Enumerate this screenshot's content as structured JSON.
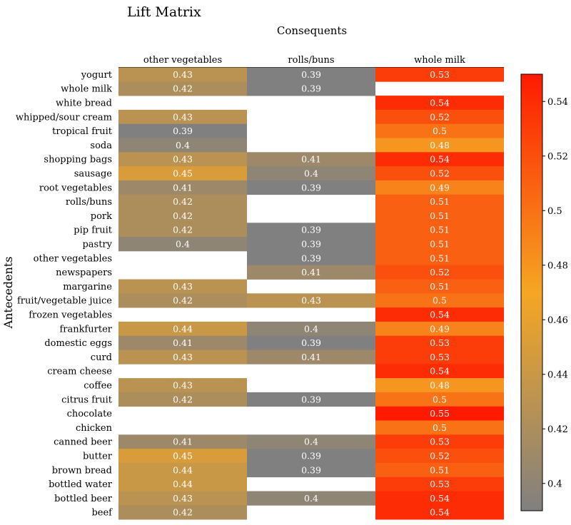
{
  "chart_data": {
    "type": "heatmap",
    "title": "Lift Matrix",
    "xlabel": "Consequents",
    "ylabel": "Antecedents",
    "columns": [
      "other vegetables",
      "rolls/buns",
      "whole milk"
    ],
    "rows": [
      {
        "label": "yogurt",
        "values": [
          0.43,
          0.39,
          0.53
        ]
      },
      {
        "label": "whole milk",
        "values": [
          0.42,
          0.39,
          null
        ]
      },
      {
        "label": "white bread",
        "values": [
          null,
          null,
          0.54
        ]
      },
      {
        "label": "whipped/sour cream",
        "values": [
          0.43,
          null,
          0.52
        ]
      },
      {
        "label": "tropical fruit",
        "values": [
          0.39,
          null,
          0.5
        ]
      },
      {
        "label": "soda",
        "values": [
          0.4,
          null,
          0.48
        ]
      },
      {
        "label": "shopping bags",
        "values": [
          0.43,
          0.41,
          0.54
        ]
      },
      {
        "label": "sausage",
        "values": [
          0.45,
          0.4,
          0.52
        ]
      },
      {
        "label": "root vegetables",
        "values": [
          0.41,
          0.39,
          0.49
        ]
      },
      {
        "label": "rolls/buns",
        "values": [
          0.42,
          null,
          0.51
        ]
      },
      {
        "label": "pork",
        "values": [
          0.42,
          null,
          0.51
        ]
      },
      {
        "label": "pip fruit",
        "values": [
          0.42,
          0.39,
          0.51
        ]
      },
      {
        "label": "pastry",
        "values": [
          0.4,
          0.39,
          0.51
        ]
      },
      {
        "label": "other vegetables",
        "values": [
          null,
          0.39,
          0.51
        ]
      },
      {
        "label": "newspapers",
        "values": [
          null,
          0.41,
          0.52
        ]
      },
      {
        "label": "margarine",
        "values": [
          0.43,
          null,
          0.51
        ]
      },
      {
        "label": "fruit/vegetable juice",
        "values": [
          0.42,
          0.43,
          0.5
        ]
      },
      {
        "label": "frozen vegetables",
        "values": [
          null,
          null,
          0.54
        ]
      },
      {
        "label": "frankfurter",
        "values": [
          0.44,
          0.4,
          0.49
        ]
      },
      {
        "label": "domestic eggs",
        "values": [
          0.41,
          0.39,
          0.53
        ]
      },
      {
        "label": "curd",
        "values": [
          0.43,
          0.41,
          0.53
        ]
      },
      {
        "label": "cream cheese",
        "values": [
          null,
          null,
          0.54
        ]
      },
      {
        "label": "coffee",
        "values": [
          0.43,
          null,
          0.48
        ]
      },
      {
        "label": "citrus fruit",
        "values": [
          0.42,
          0.39,
          0.5
        ]
      },
      {
        "label": "chocolate",
        "values": [
          null,
          null,
          0.55
        ]
      },
      {
        "label": "chicken",
        "values": [
          null,
          null,
          0.5
        ]
      },
      {
        "label": "canned beer",
        "values": [
          0.41,
          0.4,
          0.53
        ]
      },
      {
        "label": "butter",
        "values": [
          0.45,
          0.39,
          0.52
        ]
      },
      {
        "label": "brown bread",
        "values": [
          0.44,
          0.39,
          0.51
        ]
      },
      {
        "label": "bottled water",
        "values": [
          0.44,
          null,
          0.53
        ]
      },
      {
        "label": "bottled beer",
        "values": [
          0.43,
          0.4,
          0.54
        ]
      },
      {
        "label": "beef",
        "values": [
          0.42,
          null,
          0.54
        ]
      }
    ],
    "color_range": [
      0.39,
      0.55
    ],
    "colormap": [
      "#808080",
      "#f5a623",
      "#ff1a00"
    ],
    "colorbar_ticks": [
      "0.4",
      "0.42",
      "0.44",
      "0.46",
      "0.48",
      "0.5",
      "0.52",
      "0.54"
    ],
    "missing_color": "#ffffff",
    "cell_text_color": "#ffffff",
    "grid": false,
    "legend": "colorbar-right"
  }
}
